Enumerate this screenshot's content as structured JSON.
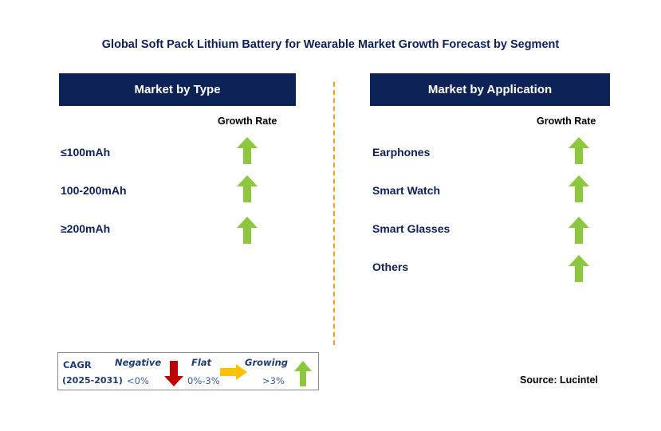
{
  "title": "Global Soft Pack Lithium Battery for Wearable Market Growth Forecast by Segment",
  "left_panel": {
    "header": "Market by Type",
    "growth_rate_label": "Growth Rate",
    "rows": [
      {
        "label": "≤100mAh",
        "trend": "growing"
      },
      {
        "label": "100-200mAh",
        "trend": "growing"
      },
      {
        "label": "≥200mAh",
        "trend": "growing"
      }
    ]
  },
  "right_panel": {
    "header": "Market by Application",
    "growth_rate_label": "Growth Rate",
    "rows": [
      {
        "label": "Earphones",
        "trend": "growing"
      },
      {
        "label": "Smart Watch",
        "trend": "growing"
      },
      {
        "label": "Smart Glasses",
        "trend": "growing"
      },
      {
        "label": "Others",
        "trend": "growing"
      }
    ]
  },
  "legend": {
    "cagr_label": "CAGR",
    "period": "(2025-2031)",
    "negative_label": "Negative",
    "negative_range": "<0%",
    "flat_label": "Flat",
    "flat_range": "0%-3%",
    "growing_label": "Growing",
    "growing_range": ">3%"
  },
  "source": "Source: Lucintel",
  "colors": {
    "header_bg": "#0d2357",
    "growing": "#8dc63f",
    "negative": "#c00000",
    "flat": "#ffc000",
    "divider": "#f0a020"
  }
}
